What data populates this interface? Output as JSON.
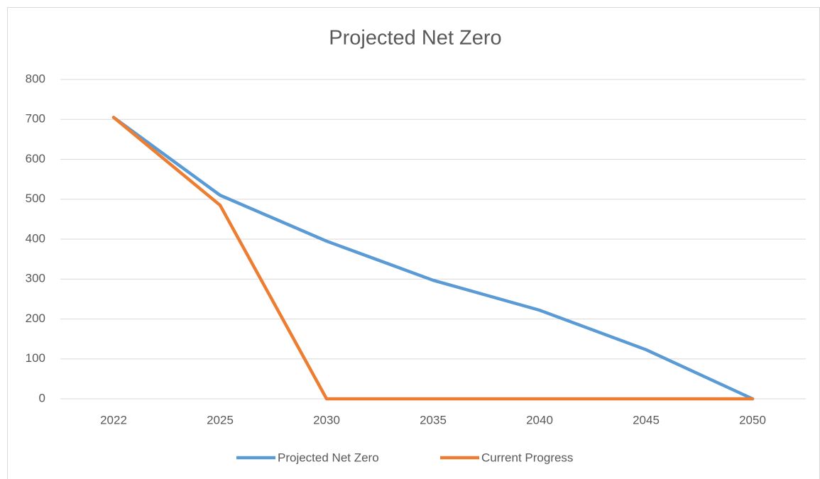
{
  "chart_data": {
    "type": "line",
    "title": "Projected Net Zero",
    "categories": [
      "2022",
      "2025",
      "2030",
      "2035",
      "2040",
      "2045",
      "2050"
    ],
    "series": [
      {
        "name": "Projected Net Zero",
        "color": "#5b9bd5",
        "values": [
          705,
          510,
          395,
          297,
          222,
          123,
          0
        ]
      },
      {
        "name": "Current Progress",
        "color": "#ed7d31",
        "values": [
          705,
          485,
          0,
          0,
          0,
          0,
          0
        ]
      }
    ],
    "ylim": [
      0,
      800
    ],
    "yticks": [
      0,
      100,
      200,
      300,
      400,
      500,
      600,
      700,
      800
    ],
    "grid": true,
    "legend": "bottom"
  }
}
